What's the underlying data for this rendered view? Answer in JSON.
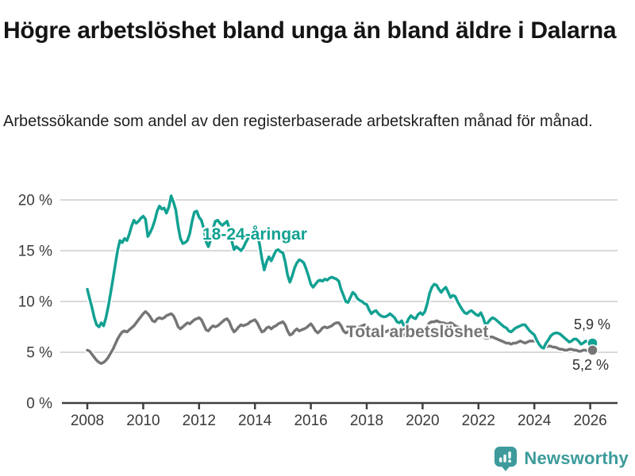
{
  "header": {
    "title": "Högre arbetslöshet bland unga än bland äldre i Dalarna",
    "subtitle": "Arbetssökande som andel av den registerbaserade arbetskraften månad för månad."
  },
  "footer": {
    "brand": "Newsworthy",
    "brand_color": "#3d9b9b",
    "icon": "newsworthy-speech-bubble-bar-chart-icon"
  },
  "chart_data": {
    "type": "line",
    "x_start": 2008.0,
    "x_step": "monthly",
    "x_ticks": [
      2008,
      2010,
      2012,
      2014,
      2016,
      2018,
      2020,
      2022,
      2024,
      2026
    ],
    "y_ticks": [
      {
        "value": 0,
        "label": "0 %"
      },
      {
        "value": 5,
        "label": "5 %"
      },
      {
        "value": 10,
        "label": "10 %"
      },
      {
        "value": 15,
        "label": "15 %"
      },
      {
        "value": 20,
        "label": "20 %"
      }
    ],
    "ylim": [
      0,
      21.5
    ],
    "xlim": [
      2007,
      2027
    ],
    "grid": true,
    "grid_color": "#d9d9d9",
    "axis_color": "#3f3f3f",
    "tick_label_color": "#3b3b3b",
    "series": [
      {
        "name": "18-24-åringar",
        "color": "#12a192",
        "end_label": "5,9 %",
        "values": [
          11.2,
          10.3,
          9.4,
          8.4,
          7.7,
          7.5,
          7.9,
          7.6,
          8.4,
          9.5,
          10.8,
          12.2,
          13.6,
          15.0,
          16.0,
          15.8,
          16.2,
          16.0,
          16.6,
          17.4,
          18.0,
          17.7,
          17.9,
          18.2,
          18.4,
          18.1,
          16.4,
          16.8,
          17.3,
          18.0,
          18.9,
          19.4,
          19.1,
          19.2,
          18.7,
          19.3,
          20.4,
          19.8,
          19.0,
          17.4,
          16.2,
          15.7,
          15.8,
          16.0,
          16.7,
          17.9,
          18.8,
          18.9,
          18.3,
          18.0,
          17.2,
          15.9,
          15.4,
          16.1,
          17.2,
          17.9,
          18.0,
          17.7,
          17.5,
          17.7,
          17.9,
          17.2,
          16.0,
          15.1,
          15.4,
          15.2,
          15.0,
          15.3,
          15.8,
          16.2,
          16.5,
          16.7,
          16.8,
          16.6,
          15.6,
          14.2,
          13.1,
          13.9,
          14.4,
          14.0,
          14.5,
          15.0,
          15.1,
          14.9,
          14.8,
          13.9,
          12.6,
          11.9,
          12.5,
          13.3,
          13.8,
          14.1,
          14.0,
          13.8,
          13.2,
          12.5,
          11.7,
          11.4,
          11.7,
          12.0,
          12.1,
          12.0,
          12.2,
          12.1,
          12.3,
          12.4,
          12.3,
          12.2,
          12.0,
          11.2,
          10.6,
          10.0,
          9.9,
          10.4,
          10.9,
          10.7,
          10.3,
          10.1,
          10.0,
          9.8,
          9.7,
          9.2,
          8.8,
          9.0,
          9.1,
          8.8,
          8.6,
          8.5,
          8.5,
          8.6,
          8.8,
          8.6,
          8.4,
          8.0,
          7.9,
          8.1,
          7.6,
          7.8,
          8.3,
          8.6,
          8.4,
          8.3,
          8.7,
          8.9,
          8.7,
          9.0,
          9.8,
          10.8,
          11.4,
          11.7,
          11.6,
          11.2,
          10.9,
          11.2,
          11.4,
          10.9,
          10.4,
          10.6,
          10.5,
          10.0,
          9.6,
          9.2,
          8.9,
          8.8,
          9.0,
          9.1,
          8.9,
          8.7,
          8.6,
          8.9,
          8.4,
          7.7,
          7.9,
          8.2,
          8.4,
          8.3,
          8.1,
          7.9,
          7.7,
          7.5,
          7.4,
          7.1,
          7.0,
          7.2,
          7.4,
          7.5,
          7.6,
          7.7,
          7.7,
          7.4,
          7.1,
          6.9,
          6.7,
          6.2,
          5.8,
          5.5,
          5.4,
          5.9,
          6.2,
          6.6,
          6.8,
          6.9,
          6.9,
          6.8,
          6.6,
          6.4,
          6.2,
          6.0,
          6.1,
          6.3,
          6.3,
          6.1,
          5.8,
          5.9,
          6.1,
          6.0,
          5.9,
          5.9
        ]
      },
      {
        "name": "Total arbetslöshet",
        "color": "#757575",
        "end_label": "5,2 %",
        "values": [
          5.2,
          5.1,
          4.8,
          4.5,
          4.2,
          4.0,
          3.9,
          4.0,
          4.2,
          4.5,
          4.9,
          5.3,
          5.8,
          6.3,
          6.7,
          7.0,
          7.1,
          7.0,
          7.2,
          7.4,
          7.6,
          7.9,
          8.2,
          8.5,
          8.8,
          9.0,
          8.8,
          8.5,
          8.1,
          8.0,
          8.3,
          8.4,
          8.3,
          8.4,
          8.6,
          8.7,
          8.8,
          8.6,
          8.1,
          7.5,
          7.3,
          7.5,
          7.7,
          7.9,
          7.8,
          8.0,
          8.2,
          8.3,
          8.4,
          8.2,
          7.7,
          7.2,
          7.1,
          7.4,
          7.6,
          7.5,
          7.6,
          7.8,
          8.0,
          8.2,
          8.3,
          8.0,
          7.4,
          7.0,
          7.2,
          7.5,
          7.7,
          7.6,
          7.7,
          7.8,
          8.0,
          8.1,
          8.2,
          7.9,
          7.4,
          7.0,
          7.1,
          7.4,
          7.5,
          7.3,
          7.5,
          7.6,
          7.8,
          7.9,
          8.0,
          7.7,
          7.1,
          6.7,
          6.8,
          7.1,
          7.3,
          7.1,
          7.2,
          7.3,
          7.4,
          7.6,
          7.8,
          7.5,
          7.1,
          6.9,
          7.1,
          7.4,
          7.5,
          7.4,
          7.5,
          7.6,
          7.8,
          7.9,
          7.9,
          7.6,
          7.1,
          6.9,
          7.0,
          7.2,
          7.4,
          7.3,
          7.4,
          7.5,
          7.6,
          7.7,
          7.6,
          7.3,
          7.0,
          6.8,
          6.9,
          7.1,
          7.2,
          7.1,
          7.0,
          7.1,
          7.2,
          7.3,
          7.3,
          7.1,
          6.8,
          6.6,
          6.7,
          6.9,
          7.0,
          6.9,
          7.0,
          7.1,
          7.2,
          7.2,
          7.3,
          7.4,
          7.6,
          7.9,
          8.0,
          8.0,
          8.1,
          8.0,
          7.9,
          7.9,
          7.8,
          7.8,
          7.9,
          7.8,
          7.6,
          7.5,
          7.4,
          7.3,
          7.3,
          7.2,
          7.1,
          7.1,
          7.0,
          7.0,
          6.9,
          6.7,
          6.5,
          6.4,
          6.4,
          6.5,
          6.5,
          6.4,
          6.3,
          6.2,
          6.1,
          6.0,
          5.9,
          5.9,
          5.8,
          5.9,
          5.9,
          6.0,
          6.1,
          6.0,
          5.9,
          6.0,
          6.1,
          6.1,
          6.1,
          6.0,
          5.8,
          5.6,
          5.5,
          5.5,
          5.6,
          5.6,
          5.5,
          5.5,
          5.4,
          5.3,
          5.3,
          5.2,
          5.2,
          5.3,
          5.3,
          5.2,
          5.2,
          5.1,
          5.1,
          5.2,
          5.2,
          5.1,
          5.2,
          5.2
        ]
      }
    ]
  }
}
